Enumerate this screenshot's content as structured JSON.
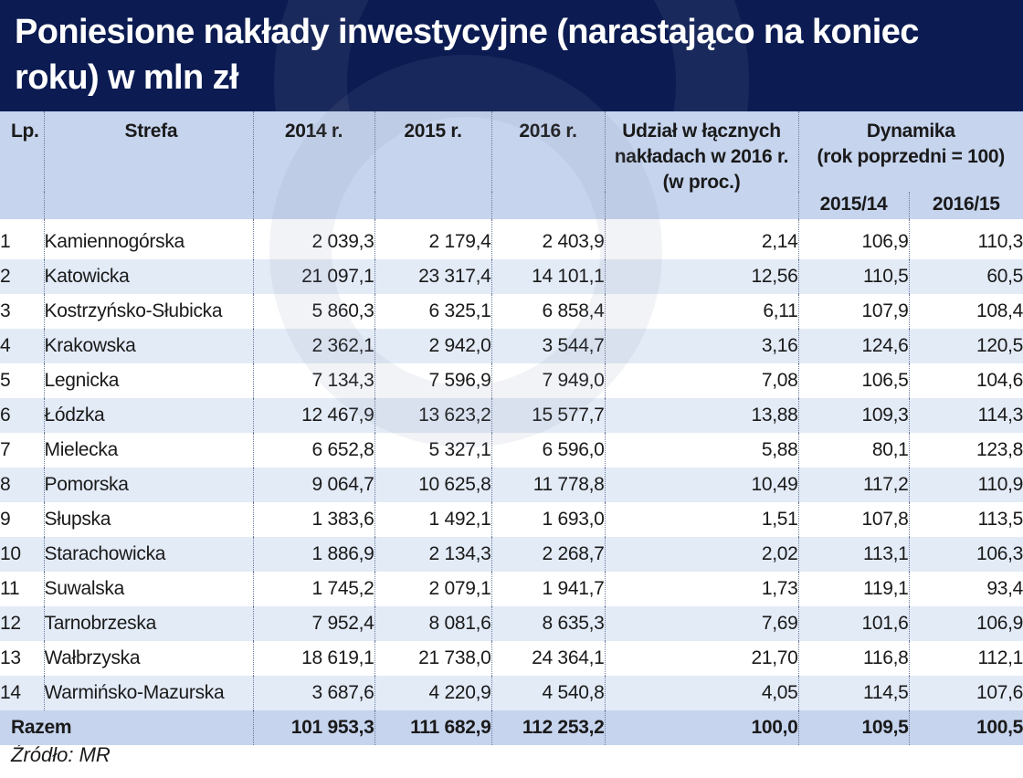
{
  "title": "Poniesione nakłady inwestycyjne (narastająco na koniec roku) w mln zł",
  "headers": {
    "lp": "Lp.",
    "strefa": "Strefa",
    "y2014": "2014 r.",
    "y2015": "2015 r.",
    "y2016": "2016 r.",
    "share_line1": "Udział w łącznych",
    "share_line2": "nakładach w 2016 r.",
    "share_line3": "(w proc.)",
    "dyn_line1": "Dynamika",
    "dyn_line2": "(rok poprzedni = 100)",
    "dyn_a": "2015/14",
    "dyn_b": "2016/15"
  },
  "rows": [
    {
      "lp": "1",
      "name": "Kamiennogórska",
      "y2014": "2 039,3",
      "y2015": "2 179,4",
      "y2016": "2 403,9",
      "share": "2,14",
      "d1": "106,9",
      "d2": "110,3"
    },
    {
      "lp": "2",
      "name": "Katowicka",
      "y2014": "21 097,1",
      "y2015": "23 317,4",
      "y2016": "14 101,1",
      "share": "12,56",
      "d1": "110,5",
      "d2": "60,5"
    },
    {
      "lp": "3",
      "name": "Kostrzyńsko-Słubicka",
      "y2014": "5 860,3",
      "y2015": "6 325,1",
      "y2016": "6 858,4",
      "share": "6,11",
      "d1": "107,9",
      "d2": "108,4"
    },
    {
      "lp": "4",
      "name": "Krakowska",
      "y2014": "2 362,1",
      "y2015": "2 942,0",
      "y2016": "3 544,7",
      "share": "3,16",
      "d1": "124,6",
      "d2": "120,5"
    },
    {
      "lp": "5",
      "name": "Legnicka",
      "y2014": "7 134,3",
      "y2015": "7 596,9",
      "y2016": "7 949,0",
      "share": "7,08",
      "d1": "106,5",
      "d2": "104,6"
    },
    {
      "lp": "6",
      "name": "Łódzka",
      "y2014": "12 467,9",
      "y2015": "13 623,2",
      "y2016": "15 577,7",
      "share": "13,88",
      "d1": "109,3",
      "d2": "114,3"
    },
    {
      "lp": "7",
      "name": "Mielecka",
      "y2014": "6 652,8",
      "y2015": "5 327,1",
      "y2016": "6 596,0",
      "share": "5,88",
      "d1": "80,1",
      "d2": "123,8"
    },
    {
      "lp": "8",
      "name": "Pomorska",
      "y2014": "9 064,7",
      "y2015": "10 625,8",
      "y2016": "11 778,8",
      "share": "10,49",
      "d1": "117,2",
      "d2": "110,9"
    },
    {
      "lp": "9",
      "name": "Słupska",
      "y2014": "1 383,6",
      "y2015": "1 492,1",
      "y2016": "1 693,0",
      "share": "1,51",
      "d1": "107,8",
      "d2": "113,5"
    },
    {
      "lp": "10",
      "name": "Starachowicka",
      "y2014": "1 886,9",
      "y2015": "2 134,3",
      "y2016": "2 268,7",
      "share": "2,02",
      "d1": "113,1",
      "d2": "106,3"
    },
    {
      "lp": "11",
      "name": "Suwalska",
      "y2014": "1 745,2",
      "y2015": "2 079,1",
      "y2016": "1 941,7",
      "share": "1,73",
      "d1": "119,1",
      "d2": "93,4"
    },
    {
      "lp": "12",
      "name": "Tarnobrzeska",
      "y2014": "7 952,4",
      "y2015": "8 081,6",
      "y2016": "8 635,3",
      "share": "7,69",
      "d1": "101,6",
      "d2": "106,9"
    },
    {
      "lp": "13",
      "name": "Wałbrzyska",
      "y2014": "18 619,1",
      "y2015": "21 738,0",
      "y2016": "24 364,1",
      "share": "21,70",
      "d1": "116,8",
      "d2": "112,1"
    },
    {
      "lp": "14",
      "name": "Warmińsko-Mazurska",
      "y2014": "3 687,6",
      "y2015": "4 220,9",
      "y2016": "4 540,8",
      "share": "4,05",
      "d1": "114,5",
      "d2": "107,6"
    }
  ],
  "total": {
    "label": "Razem",
    "y2014": "101 953,3",
    "y2015": "111 682,9",
    "y2016": "112 253,2",
    "share": "100,0",
    "d1": "109,5",
    "d2": "100,5"
  },
  "source": "Źródło: MR",
  "colors": {
    "title_bg": "#0c1c52",
    "header_bg": "#c6d4ee",
    "stripe": "#e3ebf7"
  }
}
